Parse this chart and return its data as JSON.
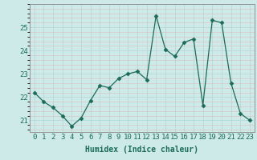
{
  "x": [
    0,
    1,
    2,
    3,
    4,
    5,
    6,
    7,
    8,
    9,
    10,
    11,
    12,
    13,
    14,
    15,
    16,
    17,
    18,
    19,
    20,
    21,
    22,
    23
  ],
  "y": [
    22.2,
    21.8,
    21.55,
    21.2,
    20.75,
    21.1,
    21.85,
    22.5,
    22.4,
    22.8,
    23.0,
    23.1,
    22.75,
    25.5,
    24.05,
    23.75,
    24.35,
    24.5,
    21.65,
    25.3,
    25.2,
    22.6,
    21.3,
    21.0
  ],
  "line_color": "#1a6b5a",
  "marker": "D",
  "marker_size": 2.5,
  "bg_color": "#ceeae8",
  "grid_color": "#b8d8d6",
  "xlabel": "Humidex (Indice chaleur)",
  "ylim": [
    20.5,
    26.0
  ],
  "xlim": [
    -0.5,
    23.5
  ],
  "yticks": [
    21,
    22,
    23,
    24,
    25
  ],
  "xticks": [
    0,
    1,
    2,
    3,
    4,
    5,
    6,
    7,
    8,
    9,
    10,
    11,
    12,
    13,
    14,
    15,
    16,
    17,
    18,
    19,
    20,
    21,
    22,
    23
  ],
  "xlabel_fontsize": 7,
  "tick_fontsize": 6.5,
  "tick_color": "#1a6b5a",
  "spine_color": "#888888"
}
